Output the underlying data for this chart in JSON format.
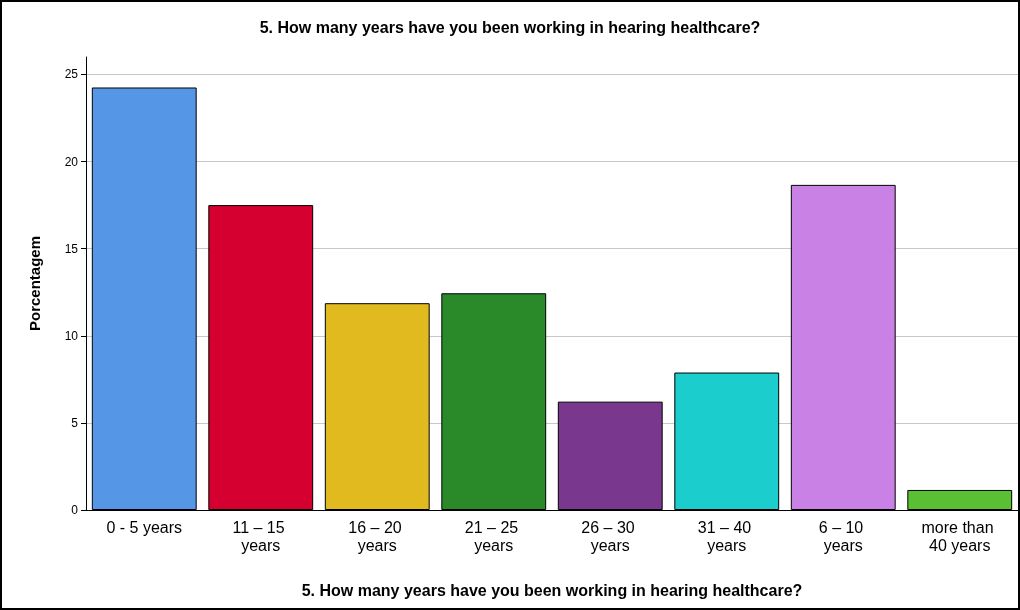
{
  "chart_data": {
    "type": "bar",
    "title": "5. How many years have you been working in hearing healthcare?",
    "xlabel": "5. How many years have you been working in hearing healthcare?",
    "ylabel": "Porcentagem",
    "categories": [
      "0 - 5 years",
      "11 – 15 years",
      "16 – 20 years",
      "21 – 25 years",
      "26 – 30 years",
      "31 – 40 years",
      "6 – 10 years",
      "more than 40 years"
    ],
    "values": [
      24.25,
      17.5,
      11.87,
      12.44,
      6.22,
      7.89,
      18.66,
      1.15
    ],
    "colors": [
      "#5596e6",
      "#d50030",
      "#e0ba1e",
      "#2a8a2a",
      "#7a378e",
      "#1ccdcd",
      "#c981e5",
      "#58c032"
    ],
    "ylim": [
      0,
      26
    ],
    "yticks": [
      0,
      5,
      10,
      15,
      20,
      25
    ],
    "grid": "y"
  }
}
